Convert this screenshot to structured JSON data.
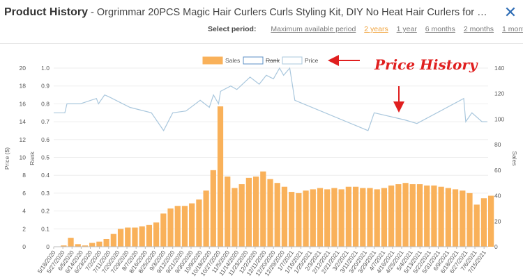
{
  "header": {
    "title_main": "Product History",
    "title_rest": " - Orgrimmar 20PCS Magic Hair Curlers Curls Styling Kit, DIY No Heat Hair Curlers for Extra Long Hair up t...",
    "close_glyph": "✕"
  },
  "period": {
    "label": "Select period:",
    "options": [
      "Maximum available period",
      "2 years",
      "1 year",
      "6 months",
      "2 months",
      "1 month"
    ],
    "active": "2 years",
    "active_color": "#f0a33c"
  },
  "annotation": {
    "text": "Price History",
    "color": "#e01f1f"
  },
  "chart_data": {
    "type": "bar",
    "legend": [
      {
        "name": "Sales",
        "color": "#f9b15a",
        "style": "filled"
      },
      {
        "name": "Rank",
        "color": "#5b8fc4",
        "style": "outline"
      },
      {
        "name": "Price",
        "color": "#a9c7dd",
        "style": "outline"
      }
    ],
    "legend_position": "top-center",
    "y_axes": {
      "price": {
        "label": "Price ($)",
        "range": [
          0,
          20
        ],
        "ticks": [
          "0",
          "2",
          "4",
          "6",
          "8",
          "10",
          "12",
          "14",
          "16",
          "18",
          "20"
        ]
      },
      "rank": {
        "label": "Rank",
        "range": [
          0,
          1.0
        ],
        "ticks": [
          "0",
          "0.1",
          "0.2",
          "0.3",
          "0.4",
          "0.5",
          "0.6",
          "0.7",
          "0.8",
          "0.9",
          "1.0"
        ]
      },
      "sales": {
        "label": "Sales",
        "range": [
          0,
          140
        ],
        "ticks": [
          "0",
          "20",
          "40",
          "60",
          "80",
          "100",
          "120",
          "140"
        ]
      }
    },
    "x_ticks": [
      "5/18/2020",
      "5/27/2020",
      "6/5/2020",
      "6/14/2020",
      "6/23/2020",
      "7/2/2020",
      "7/11/2020",
      "7/20/2020",
      "7/29/2020",
      "8/7/2020",
      "8/16/2020",
      "8/25/2020",
      "9/3/2020",
      "9/12/2020",
      "9/21/2020",
      "9/30/2020",
      "10/9/2020",
      "10/18/2020",
      "10/27/2020",
      "11/5/2020",
      "11/14/2020",
      "11/23/2020",
      "12/2/2020",
      "12/11/2020",
      "12/20/2020",
      "12/29/2020",
      "1/7/2021",
      "1/16/2021",
      "1/25/2021",
      "2/3/2021",
      "2/12/2021",
      "2/21/2021",
      "3/2/2021",
      "3/11/2021",
      "3/20/2021",
      "3/29/2021",
      "4/7/2021",
      "4/16/2021",
      "4/25/2021",
      "5/4/2021",
      "5/13/2021",
      "5/22/2021",
      "5/31/2021",
      "6/9/2021",
      "6/18/2021",
      "6/27/2021",
      "7/6/2021",
      "7/15/2021"
    ],
    "sales_series": {
      "name": "Sales",
      "weeks": [
        "5/18/2020",
        "5/25/2020",
        "6/1/2020",
        "6/8/2020",
        "6/15/2020",
        "6/22/2020",
        "6/29/2020",
        "7/6/2020",
        "7/13/2020",
        "7/20/2020",
        "7/27/2020",
        "8/3/2020",
        "8/10/2020",
        "8/17/2020",
        "8/24/2020",
        "8/31/2020",
        "9/7/2020",
        "9/14/2020",
        "9/21/2020",
        "9/28/2020",
        "10/5/2020",
        "10/12/2020",
        "10/19/2020",
        "10/26/2020",
        "11/2/2020",
        "11/9/2020",
        "11/16/2020",
        "11/23/2020",
        "11/30/2020",
        "12/7/2020",
        "12/14/2020",
        "12/21/2020",
        "12/28/2020",
        "1/4/2021",
        "1/11/2021",
        "1/18/2021",
        "1/25/2021",
        "2/1/2021",
        "2/8/2021",
        "2/15/2021",
        "2/22/2021",
        "3/1/2021",
        "3/8/2021",
        "3/15/2021",
        "3/22/2021",
        "3/29/2021",
        "4/5/2021",
        "4/12/2021",
        "4/19/2021",
        "4/26/2021",
        "5/3/2021",
        "5/10/2021",
        "5/17/2021",
        "5/24/2021",
        "5/31/2021",
        "6/7/2021",
        "6/14/2021",
        "6/21/2021",
        "6/28/2021",
        "7/5/2021",
        "7/12/2021",
        "7/19/2021"
      ],
      "values": [
        0,
        1,
        7,
        2,
        1,
        3,
        4,
        6,
        10,
        14,
        15,
        15,
        16,
        17,
        19,
        26,
        30,
        32,
        32,
        34,
        37,
        44,
        60,
        110,
        55,
        46,
        49,
        54,
        55,
        59,
        53,
        50,
        47,
        43,
        42,
        44,
        45,
        46,
        45,
        46,
        45,
        47,
        47,
        46,
        46,
        45,
        46,
        48,
        49,
        50,
        49,
        49,
        48,
        48,
        47,
        46,
        45,
        44,
        42,
        33,
        38,
        40
      ]
    },
    "rank_series": {
      "name": "Rank",
      "x": [
        "5/18/2020",
        "5/29/2020",
        "5/31/2020",
        "6/13/2020",
        "6/29/2020",
        "7/1/2020",
        "7/7/2020",
        "7/11/2020",
        "8/1/2020",
        "8/22/2020",
        "9/3/2020",
        "9/12/2020",
        "9/25/2020",
        "10/9/2020",
        "10/18/2020",
        "10/22/2020",
        "10/27/2020",
        "10/29/2020",
        "11/8/2020",
        "11/14/2020",
        "11/27/2020",
        "12/6/2020",
        "12/13/2020",
        "12/20/2020",
        "12/26/2020",
        "12/30/2020",
        "1/5/2021",
        "1/10/2021",
        "3/23/2021",
        "3/29/2021",
        "4/28/2021",
        "5/10/2021",
        "6/25/2021",
        "6/27/2021",
        "7/3/2021",
        "7/13/2021",
        "7/18/2021"
      ],
      "y": [
        0.75,
        0.75,
        0.8,
        0.8,
        0.83,
        0.8,
        0.85,
        0.84,
        0.78,
        0.75,
        0.65,
        0.75,
        0.76,
        0.82,
        0.78,
        0.85,
        0.8,
        0.87,
        0.9,
        0.88,
        0.95,
        0.91,
        0.96,
        0.94,
        1.0,
        0.96,
        1.0,
        0.82,
        0.65,
        0.75,
        0.71,
        0.69,
        0.83,
        0.7,
        0.75,
        0.7,
        0.7
      ]
    }
  }
}
